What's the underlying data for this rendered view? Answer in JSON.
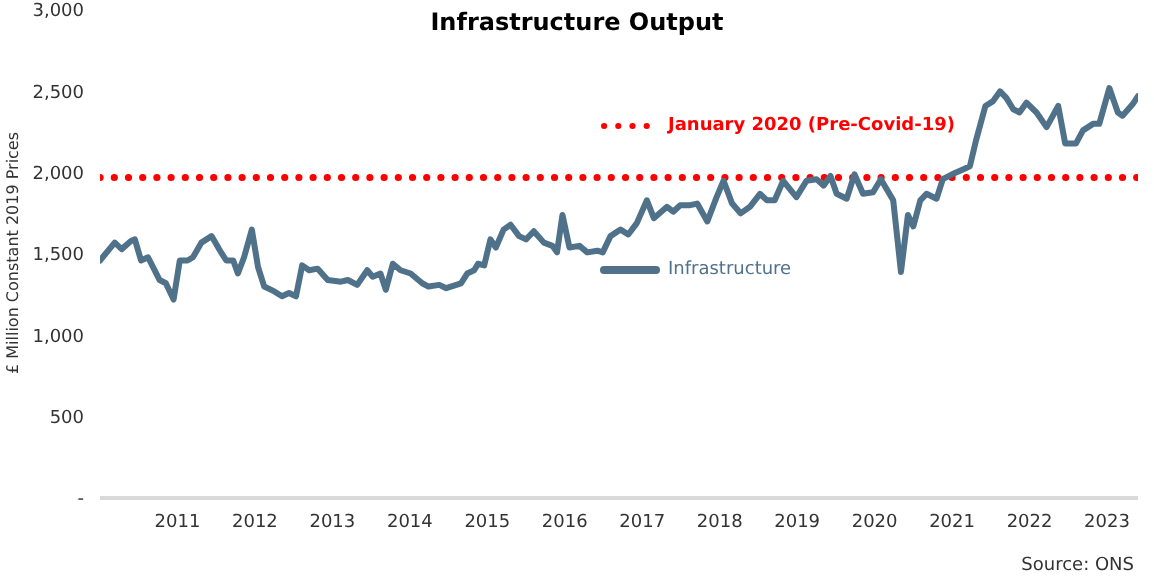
{
  "chart_data": {
    "type": "line",
    "title": "Infrastructure Output",
    "ylabel": "£ Million Constant 2019 Prices",
    "annotations": [
      "Source: ONS"
    ],
    "xlim": [
      2010,
      2023.4
    ],
    "xticks": [
      2011,
      2012,
      2013,
      2014,
      2015,
      2016,
      2017,
      2018,
      2019,
      2020,
      2021,
      2022,
      2023
    ],
    "ylim": [
      0,
      3000
    ],
    "yticks": [
      {
        "value": 0,
        "label": "-"
      },
      500,
      {
        "value": 1000,
        "label": "1,000"
      },
      {
        "value": 1500,
        "label": "1,500"
      },
      {
        "value": 2000,
        "label": "2,000"
      },
      {
        "value": 2500,
        "label": "2,500"
      },
      {
        "value": 3000,
        "label": "3,000"
      }
    ],
    "grid": false,
    "legend": "center",
    "marker": "none",
    "series": [
      {
        "name": "January 2020 (Pre-Covid-19)",
        "color": "#ff0000",
        "line_style": "dotted",
        "x": [
          2010,
          2023.4
        ],
        "values": [
          1970,
          1970
        ]
      },
      {
        "name": "Infrastructure",
        "color": "#4f7189",
        "line_style": "solid",
        "x": [
          2010.0,
          2010.19,
          2010.28,
          2010.4,
          2010.45,
          2010.53,
          2010.62,
          2010.77,
          2010.85,
          2010.95,
          2011.03,
          2011.13,
          2011.2,
          2011.31,
          2011.44,
          2011.55,
          2011.63,
          2011.72,
          2011.78,
          2011.86,
          2011.96,
          2012.04,
          2012.12,
          2012.25,
          2012.35,
          2012.44,
          2012.53,
          2012.61,
          2012.7,
          2012.81,
          2012.94,
          2013.11,
          2013.2,
          2013.32,
          2013.45,
          2013.52,
          2013.62,
          2013.69,
          2013.78,
          2013.88,
          2014.01,
          2014.16,
          2014.24,
          2014.38,
          2014.47,
          2014.66,
          2014.74,
          2014.83,
          2014.88,
          2014.96,
          2015.04,
          2015.11,
          2015.21,
          2015.3,
          2015.41,
          2015.5,
          2015.6,
          2015.73,
          2015.84,
          2015.9,
          2015.97,
          2016.06,
          2016.19,
          2016.29,
          2016.42,
          2016.49,
          2016.59,
          2016.72,
          2016.82,
          2016.93,
          2017.06,
          2017.15,
          2017.32,
          2017.4,
          2017.49,
          2017.62,
          2017.71,
          2017.84,
          2017.96,
          2018.05,
          2018.16,
          2018.27,
          2018.39,
          2018.52,
          2018.61,
          2018.71,
          2018.82,
          2018.99,
          2019.12,
          2019.25,
          2019.34,
          2019.43,
          2019.51,
          2019.64,
          2019.74,
          2019.85,
          2019.98,
          2020.08,
          2020.24,
          2020.34,
          2020.43,
          2020.5,
          2020.59,
          2020.67,
          2020.8,
          2020.88,
          2021.0,
          2021.14,
          2021.23,
          2021.31,
          2021.43,
          2021.53,
          2021.62,
          2021.7,
          2021.79,
          2021.87,
          2021.96,
          2022.09,
          2022.22,
          2022.37,
          2022.46,
          2022.6,
          2022.69,
          2022.82,
          2022.9,
          2023.03,
          2023.14,
          2023.2,
          2023.33,
          2023.4
        ],
        "values": [
          1460,
          1570,
          1530,
          1580,
          1590,
          1460,
          1480,
          1340,
          1320,
          1220,
          1460,
          1460,
          1480,
          1570,
          1610,
          1520,
          1460,
          1460,
          1380,
          1480,
          1650,
          1420,
          1300,
          1270,
          1240,
          1260,
          1240,
          1430,
          1400,
          1410,
          1340,
          1330,
          1340,
          1310,
          1400,
          1360,
          1380,
          1280,
          1440,
          1400,
          1380,
          1320,
          1300,
          1310,
          1290,
          1320,
          1380,
          1400,
          1440,
          1430,
          1590,
          1540,
          1650,
          1680,
          1610,
          1590,
          1640,
          1570,
          1550,
          1510,
          1740,
          1540,
          1550,
          1510,
          1520,
          1510,
          1610,
          1650,
          1620,
          1690,
          1830,
          1720,
          1790,
          1760,
          1800,
          1800,
          1810,
          1700,
          1850,
          1950,
          1810,
          1750,
          1790,
          1870,
          1830,
          1830,
          1950,
          1850,
          1950,
          1960,
          1920,
          1980,
          1870,
          1840,
          1990,
          1870,
          1880,
          1960,
          1830,
          1390,
          1740,
          1670,
          1830,
          1870,
          1840,
          1960,
          1990,
          2020,
          2040,
          2200,
          2410,
          2440,
          2500,
          2460,
          2390,
          2370,
          2430,
          2370,
          2280,
          2410,
          2180,
          2180,
          2260,
          2300,
          2300,
          2520,
          2370,
          2350,
          2420,
          2470
        ]
      }
    ]
  }
}
